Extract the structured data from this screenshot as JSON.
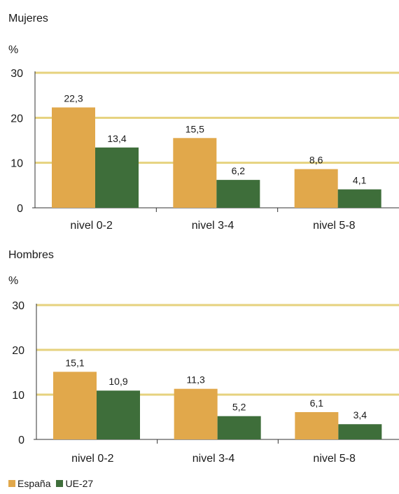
{
  "chart_data": [
    {
      "type": "bar",
      "title": "Mujeres",
      "ylabel": "%",
      "ylim": [
        0,
        30
      ],
      "yticks": [
        0,
        10,
        20,
        30
      ],
      "categories": [
        "nivel 0-2",
        "nivel 3-4",
        "nivel 5-8"
      ],
      "series": [
        {
          "name": "España",
          "values": [
            22.3,
            15.5,
            8.6
          ],
          "labels": [
            "22,3",
            "15,5",
            "8,6"
          ]
        },
        {
          "name": "UE-27",
          "values": [
            13.4,
            6.2,
            4.1
          ],
          "labels": [
            "13,4",
            "6,2",
            "4,1"
          ]
        }
      ],
      "grid": true
    },
    {
      "type": "bar",
      "title": "Hombres",
      "ylabel": "%",
      "ylim": [
        0,
        30
      ],
      "yticks": [
        0,
        10,
        20,
        30
      ],
      "categories": [
        "nivel 0-2",
        "nivel 3-4",
        "nivel 5-8"
      ],
      "series": [
        {
          "name": "España",
          "values": [
            15.1,
            11.3,
            6.1
          ],
          "labels": [
            "15,1",
            "11,3",
            "6,1"
          ]
        },
        {
          "name": "UE-27",
          "values": [
            10.9,
            5.2,
            3.4
          ],
          "labels": [
            "10,9",
            "5,2",
            "3,4"
          ]
        }
      ],
      "grid": true
    }
  ],
  "colors": {
    "espana": "#E1A84B",
    "ue27": "#3E6E3A",
    "grid": "#E6D27E",
    "axis": "#333333"
  },
  "legend": {
    "espana": "España",
    "ue27": "UE-27",
    "position": "bottom-left"
  }
}
